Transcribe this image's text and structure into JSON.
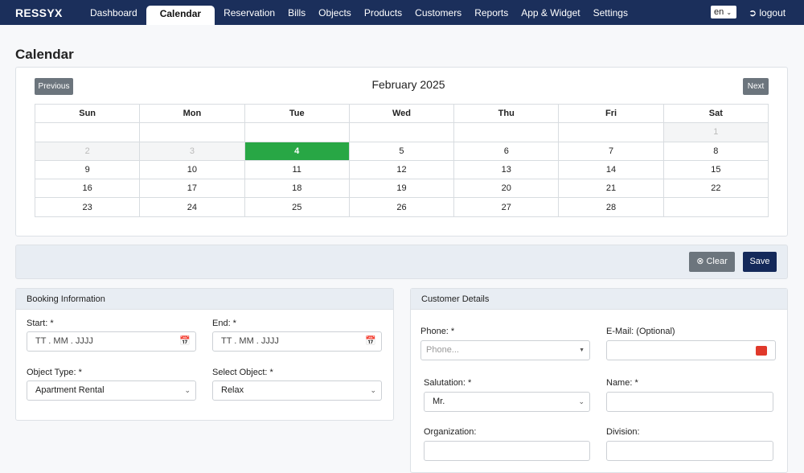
{
  "nav": {
    "logo": "RESSYX",
    "items": [
      "Dashboard",
      "Calendar",
      "Reservation",
      "Bills",
      "Objects",
      "Products",
      "Customers",
      "Reports",
      "App & Widget",
      "Settings"
    ],
    "active": 1,
    "language": "en",
    "logout": "logout"
  },
  "page_title": "Calendar",
  "calendar": {
    "previous": "Previous",
    "month": "February 2025",
    "next": "Next",
    "weekdays": [
      "Sun",
      "Mon",
      "Tue",
      "Wed",
      "Thu",
      "Fri",
      "Sat"
    ],
    "weeks": [
      [
        null,
        null,
        null,
        null,
        null,
        null,
        {
          "day": 1,
          "state": "past"
        }
      ],
      [
        {
          "day": 2,
          "state": "past"
        },
        {
          "day": 3,
          "state": "past"
        },
        {
          "day": 4,
          "state": "today"
        },
        {
          "day": 5
        },
        {
          "day": 6
        },
        {
          "day": 7
        },
        {
          "day": 8
        }
      ],
      [
        {
          "day": 9
        },
        {
          "day": 10
        },
        {
          "day": 11
        },
        {
          "day": 12
        },
        {
          "day": 13
        },
        {
          "day": 14
        },
        {
          "day": 15
        }
      ],
      [
        {
          "day": 16
        },
        {
          "day": 17
        },
        {
          "day": 18
        },
        {
          "day": 19
        },
        {
          "day": 20
        },
        {
          "day": 21
        },
        {
          "day": 22
        }
      ],
      [
        {
          "day": 23
        },
        {
          "day": 24
        },
        {
          "day": 25
        },
        {
          "day": 26
        },
        {
          "day": 27
        },
        {
          "day": 28
        },
        null
      ]
    ]
  },
  "toolbar": {
    "clear": "Clear",
    "save": "Save"
  },
  "booking": {
    "title": "Booking Information",
    "start_label": "Start: *",
    "start_placeholder": "TT . MM . JJJJ",
    "end_label": "End: *",
    "end_placeholder": "TT . MM . JJJJ",
    "object_type_label": "Object Type: *",
    "object_type": "Apartment Rental",
    "object_label": "Select Object: *",
    "object": "Relax"
  },
  "customer": {
    "title": "Customer Details",
    "phone_label": "Phone: *",
    "phone_placeholder": "Phone...",
    "email_label": "E-Mail: (Optional)",
    "salutation_label": "Salutation: *",
    "salutation": "Mr.",
    "name_label": "Name: *",
    "organization_label": "Organization:",
    "division_label": "Division:"
  }
}
